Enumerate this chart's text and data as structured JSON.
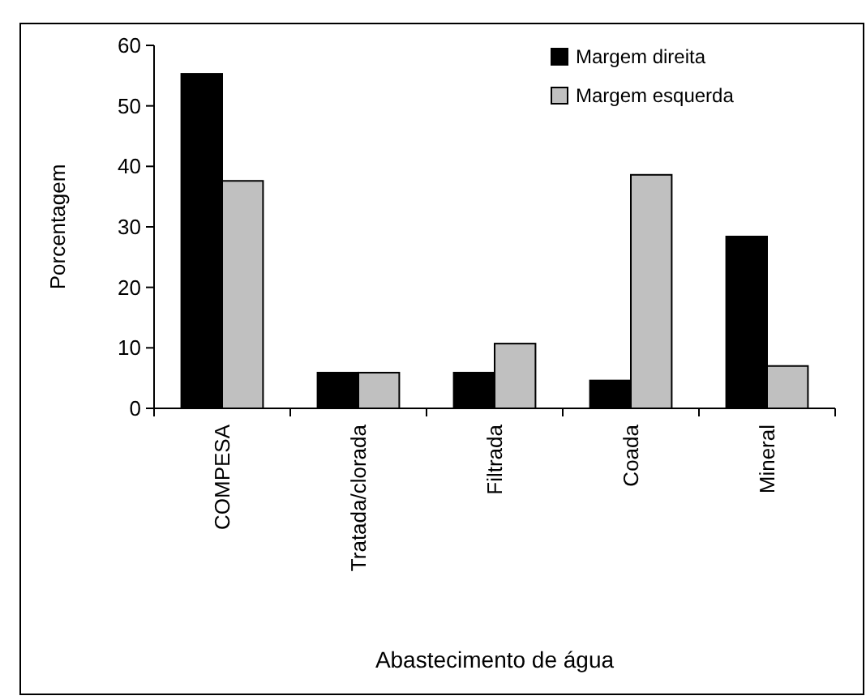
{
  "chart_data": {
    "type": "bar",
    "xlabel": "Abastecimento de água",
    "ylabel": "Porcentagem",
    "categories": [
      "COMPESA",
      "Tratada/clorada",
      "Filtrada",
      "Coada",
      "Mineral"
    ],
    "series": [
      {
        "name": "Margem direita",
        "color": "#000000",
        "values": [
          55.3,
          5.9,
          5.9,
          4.6,
          28.4
        ]
      },
      {
        "name": "Margem esquerda",
        "color": "#c0c0c0",
        "values": [
          37.6,
          5.9,
          10.7,
          38.6,
          7.0
        ]
      }
    ],
    "ylim": [
      0,
      60
    ],
    "yticks": [
      0,
      10,
      20,
      30,
      40,
      50,
      60
    ],
    "grid": false,
    "legend": "top right"
  }
}
